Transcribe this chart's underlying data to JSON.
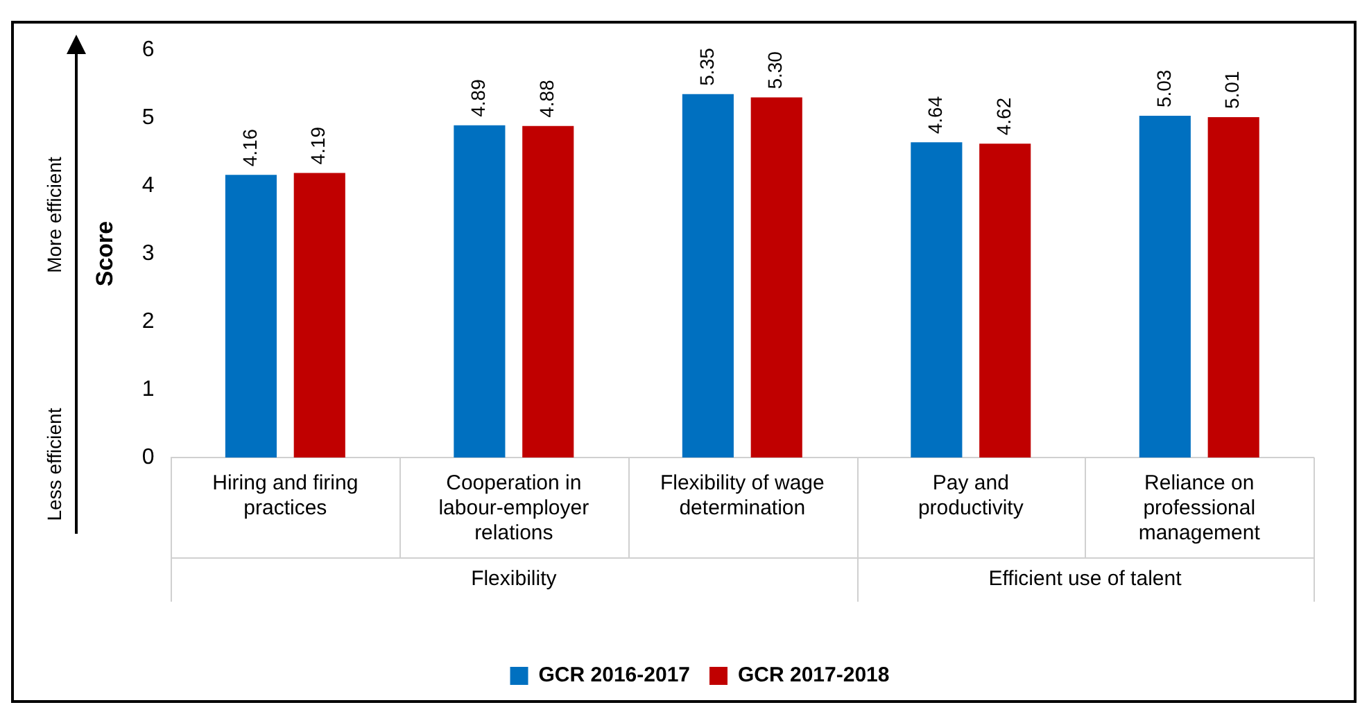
{
  "chart_data": {
    "type": "bar",
    "ylabel": "Score",
    "categories": [
      "Hiring and firing practices",
      "Cooperation in labour-employer relations",
      "Flexibility of wage determination",
      "Pay and productivity",
      "Reliance on professional management"
    ],
    "series": [
      {
        "name": "GCR 2016-2017",
        "color": "#0070c0",
        "values": [
          4.16,
          4.89,
          5.35,
          4.64,
          5.03
        ]
      },
      {
        "name": "GCR 2017-2018",
        "color": "#c00000",
        "values": [
          4.19,
          4.88,
          5.3,
          4.62,
          5.01
        ]
      }
    ],
    "value_labels": [
      [
        "4.16",
        "4.89",
        "5.35",
        "4.64",
        "5.03"
      ],
      [
        "4.19",
        "4.88",
        "5.30",
        "4.62",
        "5.01"
      ]
    ],
    "ylim": [
      0,
      6
    ],
    "yticks": [
      0,
      1,
      2,
      3,
      4,
      5,
      6
    ],
    "grid": false,
    "legend": "bottom",
    "annotations": [
      "More efficient",
      "Less efficient",
      "Flexibility",
      "Efficient use of talent"
    ]
  }
}
